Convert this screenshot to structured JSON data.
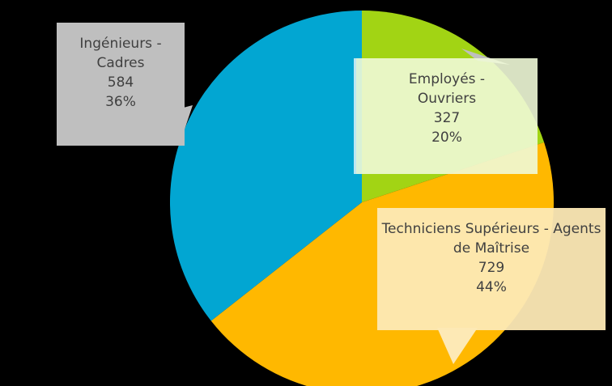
{
  "chart_data": {
    "type": "pie",
    "categories": [
      "Employés - Ouvriers",
      "Techniciens Supérieurs - Agents de Maîtrise",
      "Ingénieurs - Cadres"
    ],
    "values": [
      327,
      729,
      584
    ],
    "percent_labels": [
      "20%",
      "44%",
      "36%"
    ],
    "colors": [
      "#a2d414",
      "#ffb800",
      "#02a6d2"
    ]
  }
}
